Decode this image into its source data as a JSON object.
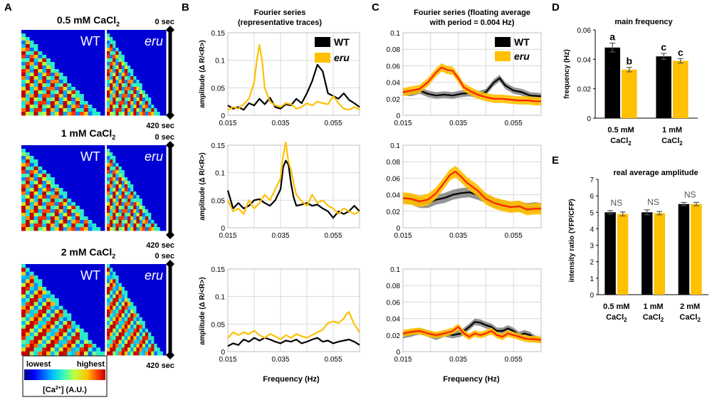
{
  "colors": {
    "wt": "#000000",
    "eru": "#FFC000",
    "eru_avg": "#FF2000",
    "wt_band": "#808080",
    "eru_band": "#FFC000",
    "grid": "#d9d9d9"
  },
  "panelA": {
    "letter": "A",
    "rows": [
      {
        "label": "0.5 mM CaCl",
        "sub": "2",
        "wt": "WT",
        "eru": "eru",
        "t0": "0 sec",
        "t1": "420 sec"
      },
      {
        "label": "1 mM CaCl",
        "sub": "2",
        "wt": "WT",
        "eru": "eru",
        "t0": "0 sec",
        "t1": "420 sec"
      },
      {
        "label": "2 mM CaCl",
        "sub": "2",
        "wt": "WT",
        "eru": "eru",
        "t0": "0 sec",
        "t1": "420 sec"
      }
    ],
    "colorbar": {
      "low": "lowest",
      "high": "highest",
      "unit_pre": "[Ca",
      "unit_sup": "2+",
      "unit_post": "] (A.U.)"
    }
  },
  "panelB": {
    "letter": "B",
    "title1": "Fourier series",
    "title2": "(representative traces)",
    "ylabel": "amplitude (Δ R/<R>)",
    "xlabel": "Frequency (Hz)",
    "legend": [
      "WT",
      "eru"
    ]
  },
  "panelC": {
    "letter": "C",
    "title1": "Fourier series (floating average",
    "title2": "with period = 0.004 Hz)",
    "xlabel": "Frequency (Hz)",
    "legend": [
      "WT",
      "eru"
    ]
  },
  "panelD": {
    "letter": "D",
    "title": "main frequency",
    "ylabel": "frequency (Hz)",
    "categories": [
      {
        "l1": "0.5 mM",
        "l2": "CaCl",
        "sub": "2"
      },
      {
        "l1": "1 mM",
        "l2": "CaCl",
        "sub": "2"
      }
    ],
    "letters": [
      "a",
      "b",
      "c",
      "c"
    ]
  },
  "panelE": {
    "letter": "E",
    "title": "real average amplitude",
    "ylabel": "intensity ratio (YFP/CFP)",
    "categories": [
      {
        "l1": "0.5 mM",
        "l2": "CaCl",
        "sub": "2"
      },
      {
        "l1": "1 mM",
        "l2": "CaCl",
        "sub": "2"
      },
      {
        "l1": "2 mM",
        "l2": "CaCl",
        "sub": "2"
      }
    ],
    "ns": [
      "NS",
      "NS",
      "NS"
    ]
  },
  "chart_data": [
    {
      "id": "B1",
      "type": "line",
      "title": "Fourier series (representative traces) — 0.5 mM CaCl2",
      "xlabel": "Frequency (Hz)",
      "ylabel": "amplitude (Δ R/<R>)",
      "xlim": [
        0.015,
        0.065
      ],
      "ylim": [
        0,
        0.15
      ],
      "xticks": [
        "0.015",
        "0.035",
        "0.055"
      ],
      "yticks": [
        "0",
        "0.05",
        "0.1",
        "0.15"
      ],
      "series": [
        {
          "name": "WT",
          "x": [
            0.015,
            0.017,
            0.019,
            0.021,
            0.023,
            0.025,
            0.027,
            0.029,
            0.031,
            0.033,
            0.035,
            0.037,
            0.039,
            0.041,
            0.043,
            0.045,
            0.047,
            0.049,
            0.051,
            0.053,
            0.055,
            0.057,
            0.059,
            0.061,
            0.063,
            0.065
          ],
          "y": [
            0.018,
            0.012,
            0.015,
            0.01,
            0.022,
            0.018,
            0.03,
            0.02,
            0.032,
            0.015,
            0.012,
            0.02,
            0.018,
            0.03,
            0.022,
            0.04,
            0.062,
            0.092,
            0.08,
            0.04,
            0.035,
            0.03,
            0.04,
            0.028,
            0.022,
            0.015
          ]
        },
        {
          "name": "eru",
          "x": [
            0.015,
            0.017,
            0.019,
            0.021,
            0.023,
            0.025,
            0.026,
            0.027,
            0.028,
            0.029,
            0.031,
            0.033,
            0.035,
            0.037,
            0.039,
            0.041,
            0.043,
            0.045,
            0.047,
            0.049,
            0.051,
            0.053,
            0.055,
            0.057,
            0.059,
            0.061,
            0.063,
            0.065
          ],
          "y": [
            0.01,
            0.015,
            0.012,
            0.02,
            0.03,
            0.06,
            0.1,
            0.128,
            0.1,
            0.05,
            0.025,
            0.018,
            0.015,
            0.022,
            0.02,
            0.012,
            0.015,
            0.022,
            0.018,
            0.025,
            0.022,
            0.02,
            0.035,
            0.022,
            0.012,
            0.01,
            0.015,
            0.01
          ]
        }
      ]
    },
    {
      "id": "B2",
      "type": "line",
      "title": "Fourier series (representative traces) — 1 mM CaCl2",
      "xlabel": "Frequency (Hz)",
      "ylabel": "amplitude (Δ R/<R>)",
      "xlim": [
        0.015,
        0.065
      ],
      "ylim": [
        0,
        0.15
      ],
      "xticks": [
        "0.015",
        "0.035",
        "0.055"
      ],
      "yticks": [
        "0",
        "0.05",
        "0.1",
        "0.15"
      ],
      "series": [
        {
          "name": "WT",
          "x": [
            0.015,
            0.017,
            0.019,
            0.021,
            0.023,
            0.025,
            0.027,
            0.029,
            0.031,
            0.033,
            0.035,
            0.036,
            0.037,
            0.038,
            0.039,
            0.04,
            0.041,
            0.043,
            0.045,
            0.047,
            0.049,
            0.051,
            0.053,
            0.055,
            0.057,
            0.059,
            0.061,
            0.063,
            0.065
          ],
          "y": [
            0.068,
            0.035,
            0.045,
            0.035,
            0.04,
            0.05,
            0.052,
            0.045,
            0.04,
            0.05,
            0.07,
            0.11,
            0.122,
            0.115,
            0.08,
            0.055,
            0.04,
            0.042,
            0.045,
            0.04,
            0.042,
            0.035,
            0.03,
            0.018,
            0.03,
            0.025,
            0.03,
            0.04,
            0.03
          ]
        },
        {
          "name": "eru",
          "x": [
            0.015,
            0.017,
            0.019,
            0.021,
            0.023,
            0.025,
            0.027,
            0.029,
            0.031,
            0.033,
            0.035,
            0.036,
            0.037,
            0.038,
            0.039,
            0.04,
            0.041,
            0.043,
            0.045,
            0.047,
            0.049,
            0.051,
            0.053,
            0.055,
            0.057,
            0.059,
            0.061,
            0.063,
            0.065
          ],
          "y": [
            0.05,
            0.03,
            0.035,
            0.025,
            0.05,
            0.035,
            0.045,
            0.06,
            0.05,
            0.07,
            0.09,
            0.13,
            0.155,
            0.12,
            0.105,
            0.08,
            0.06,
            0.048,
            0.04,
            0.06,
            0.045,
            0.05,
            0.04,
            0.035,
            0.025,
            0.035,
            0.03,
            0.025,
            0.03
          ]
        }
      ]
    },
    {
      "id": "B3",
      "type": "line",
      "title": "Fourier series (representative traces) — 2 mM CaCl2",
      "xlabel": "Frequency (Hz)",
      "ylabel": "amplitude (Δ R/<R>)",
      "xlim": [
        0.015,
        0.065
      ],
      "ylim": [
        0,
        0.15
      ],
      "xticks": [
        "0.015",
        "0.035",
        "0.055"
      ],
      "yticks": [
        "0",
        "0.05",
        "0.1",
        "0.15"
      ],
      "series": [
        {
          "name": "WT",
          "x": [
            0.015,
            0.017,
            0.019,
            0.021,
            0.023,
            0.025,
            0.027,
            0.029,
            0.031,
            0.033,
            0.035,
            0.037,
            0.039,
            0.041,
            0.043,
            0.045,
            0.047,
            0.049,
            0.051,
            0.053,
            0.055,
            0.057,
            0.059,
            0.061,
            0.063,
            0.065
          ],
          "y": [
            0.01,
            0.015,
            0.012,
            0.022,
            0.018,
            0.025,
            0.02,
            0.025,
            0.022,
            0.018,
            0.015,
            0.02,
            0.018,
            0.022,
            0.015,
            0.018,
            0.022,
            0.025,
            0.018,
            0.02,
            0.015,
            0.018,
            0.02,
            0.022,
            0.018,
            0.012
          ]
        },
        {
          "name": "eru",
          "x": [
            0.015,
            0.017,
            0.019,
            0.021,
            0.023,
            0.025,
            0.027,
            0.029,
            0.031,
            0.033,
            0.035,
            0.037,
            0.039,
            0.041,
            0.043,
            0.045,
            0.047,
            0.049,
            0.051,
            0.053,
            0.055,
            0.057,
            0.059,
            0.06,
            0.061,
            0.062,
            0.063,
            0.065
          ],
          "y": [
            0.025,
            0.035,
            0.03,
            0.035,
            0.032,
            0.038,
            0.03,
            0.025,
            0.032,
            0.028,
            0.022,
            0.03,
            0.025,
            0.032,
            0.028,
            0.025,
            0.03,
            0.035,
            0.04,
            0.052,
            0.055,
            0.052,
            0.06,
            0.068,
            0.072,
            0.06,
            0.05,
            0.035
          ]
        }
      ]
    },
    {
      "id": "C1",
      "type": "line",
      "title": "Fourier series (floating average with period = 0.004 Hz) — 0.5 mM CaCl2",
      "xlabel": "Frequency (Hz)",
      "xlim": [
        0.015,
        0.065
      ],
      "ylim": [
        0,
        0.1
      ],
      "xticks": [
        "0.015",
        "0.035",
        "0.055"
      ],
      "yticks": [
        "0",
        "0.02",
        "0.04",
        "0.06",
        "0.08",
        "0.1"
      ],
      "series": [
        {
          "name": "WT",
          "x": [
            0.015,
            0.018,
            0.021,
            0.024,
            0.027,
            0.03,
            0.033,
            0.036,
            0.039,
            0.042,
            0.045,
            0.048,
            0.05,
            0.052,
            0.055,
            0.058,
            0.061,
            0.065
          ],
          "y": [
            0.028,
            0.027,
            0.03,
            0.026,
            0.024,
            0.025,
            0.024,
            0.026,
            0.027,
            0.025,
            0.028,
            0.04,
            0.045,
            0.036,
            0.03,
            0.028,
            0.024,
            0.023
          ],
          "sd": 0.004
        },
        {
          "name": "eru",
          "x": [
            0.015,
            0.018,
            0.021,
            0.024,
            0.027,
            0.029,
            0.031,
            0.033,
            0.035,
            0.037,
            0.039,
            0.042,
            0.045,
            0.048,
            0.051,
            0.054,
            0.057,
            0.06,
            0.063,
            0.065
          ],
          "y": [
            0.028,
            0.03,
            0.032,
            0.04,
            0.052,
            0.058,
            0.055,
            0.054,
            0.045,
            0.034,
            0.03,
            0.025,
            0.022,
            0.02,
            0.02,
            0.019,
            0.018,
            0.018,
            0.017,
            0.017
          ],
          "sd": 0.005
        }
      ]
    },
    {
      "id": "C2",
      "type": "line",
      "title": "Fourier series (floating average with period = 0.004 Hz) — 1 mM CaCl2",
      "xlabel": "Frequency (Hz)",
      "xlim": [
        0.015,
        0.065
      ],
      "ylim": [
        0,
        0.1
      ],
      "xticks": [
        "0.015",
        "0.035",
        "0.055"
      ],
      "yticks": [
        "0",
        "0.02",
        "0.04",
        "0.06",
        "0.08",
        "0.1"
      ],
      "series": [
        {
          "name": "WT",
          "x": [
            0.015,
            0.018,
            0.021,
            0.024,
            0.027,
            0.03,
            0.033,
            0.036,
            0.039,
            0.042,
            0.045,
            0.048,
            0.051,
            0.054,
            0.057,
            0.06,
            0.063,
            0.065
          ],
          "y": [
            0.035,
            0.034,
            0.03,
            0.03,
            0.034,
            0.036,
            0.04,
            0.042,
            0.043,
            0.04,
            0.036,
            0.03,
            0.028,
            0.025,
            0.026,
            0.024,
            0.025,
            0.024
          ],
          "sd": 0.006
        },
        {
          "name": "eru",
          "x": [
            0.015,
            0.018,
            0.021,
            0.024,
            0.027,
            0.03,
            0.032,
            0.034,
            0.036,
            0.038,
            0.04,
            0.042,
            0.045,
            0.048,
            0.051,
            0.054,
            0.057,
            0.06,
            0.063,
            0.065
          ],
          "y": [
            0.036,
            0.035,
            0.032,
            0.034,
            0.042,
            0.055,
            0.064,
            0.068,
            0.062,
            0.055,
            0.05,
            0.045,
            0.035,
            0.03,
            0.027,
            0.025,
            0.026,
            0.022,
            0.023,
            0.023
          ],
          "sd": 0.007
        }
      ]
    },
    {
      "id": "C3",
      "type": "line",
      "title": "Fourier series (floating average with period = 0.004 Hz) — 2 mM CaCl2",
      "xlabel": "Frequency (Hz)",
      "xlim": [
        0.015,
        0.065
      ],
      "ylim": [
        0,
        0.1
      ],
      "xticks": [
        "0.015",
        "0.035",
        "0.055"
      ],
      "yticks": [
        "0",
        "0.02",
        "0.04",
        "0.06",
        "0.08",
        "0.1"
      ],
      "series": [
        {
          "name": "WT",
          "x": [
            0.015,
            0.018,
            0.021,
            0.024,
            0.027,
            0.03,
            0.033,
            0.036,
            0.039,
            0.041,
            0.043,
            0.045,
            0.047,
            0.049,
            0.051,
            0.053,
            0.055,
            0.057,
            0.059,
            0.061,
            0.063,
            0.065
          ],
          "y": [
            0.02,
            0.022,
            0.025,
            0.022,
            0.018,
            0.022,
            0.02,
            0.022,
            0.03,
            0.036,
            0.035,
            0.032,
            0.03,
            0.025,
            0.025,
            0.028,
            0.025,
            0.02,
            0.022,
            0.02,
            0.015,
            0.014
          ],
          "sd": 0.004
        },
        {
          "name": "eru",
          "x": [
            0.015,
            0.018,
            0.021,
            0.024,
            0.027,
            0.03,
            0.033,
            0.035,
            0.037,
            0.039,
            0.041,
            0.043,
            0.045,
            0.047,
            0.049,
            0.051,
            0.053,
            0.055,
            0.057,
            0.059,
            0.061,
            0.063,
            0.065
          ],
          "y": [
            0.022,
            0.024,
            0.025,
            0.022,
            0.02,
            0.022,
            0.025,
            0.03,
            0.022,
            0.018,
            0.022,
            0.02,
            0.022,
            0.025,
            0.02,
            0.018,
            0.022,
            0.02,
            0.018,
            0.016,
            0.015,
            0.015,
            0.014
          ],
          "sd": 0.004
        }
      ]
    },
    {
      "id": "D",
      "type": "bar",
      "title": "main frequency",
      "ylabel": "frequency (Hz)",
      "categories": [
        "0.5 mM CaCl2",
        "1 mM CaCl2"
      ],
      "ylim": [
        0,
        0.06
      ],
      "yticks": [
        "0",
        "0.02",
        "0.04",
        "0.06"
      ],
      "series": [
        {
          "name": "WT",
          "values": [
            0.048,
            0.042
          ],
          "err": [
            0.003,
            0.002
          ]
        },
        {
          "name": "eru",
          "values": [
            0.033,
            0.039
          ],
          "err": [
            0.0015,
            0.0015
          ]
        }
      ],
      "annotations": [
        "a",
        "b",
        "c",
        "c"
      ]
    },
    {
      "id": "E",
      "type": "bar",
      "title": "real average amplitude",
      "ylabel": "intensity ratio (YFP/CFP)",
      "categories": [
        "0.5 mM CaCl2",
        "1 mM CaCl2",
        "2 mM CaCl2"
      ],
      "ylim": [
        0,
        7
      ],
      "yticks": [
        "0",
        "1",
        "2",
        "3",
        "4",
        "5",
        "6",
        "7"
      ],
      "series": [
        {
          "name": "WT",
          "values": [
            5.0,
            5.0,
            5.5
          ],
          "err": [
            0.1,
            0.15,
            0.1
          ]
        },
        {
          "name": "eru",
          "values": [
            4.9,
            4.95,
            5.5
          ],
          "err": [
            0.12,
            0.1,
            0.1
          ]
        }
      ],
      "annotations": [
        "NS",
        "NS",
        "NS"
      ]
    }
  ]
}
